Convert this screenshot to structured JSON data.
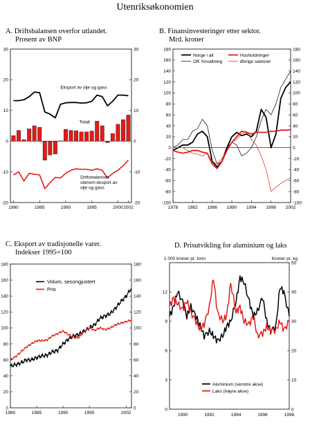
{
  "page_title": "Utenriksøkonomien",
  "chart_data": [
    {
      "id": "A",
      "type": "bar",
      "title_lines": [
        "A.  Driftsbalansen overfor utlandet.",
        "Prosent av BNP"
      ],
      "ylim": [
        -20,
        30
      ],
      "yticks": [
        -20,
        -10,
        0,
        10,
        20,
        30
      ],
      "xlim": [
        1979.4,
        2002.6
      ],
      "xticks": [
        1980,
        1985,
        1990,
        1995,
        2000,
        2002
      ],
      "bars": {
        "name": "Totalt",
        "x": [
          1980,
          1981,
          1982,
          1983,
          1984,
          1985,
          1986,
          1987,
          1988,
          1989,
          1990,
          1991,
          1992,
          1993,
          1994,
          1995,
          1996,
          1997,
          1998,
          1999,
          2000,
          2001,
          2002
        ],
        "values": [
          1.8,
          3.5,
          0.5,
          4.0,
          5.0,
          4.5,
          -6.2,
          -4.5,
          -4.2,
          0.1,
          3.8,
          3.5,
          3.4,
          3.0,
          3.0,
          3.3,
          6.5,
          5.0,
          -0.5,
          2.5,
          5.5,
          7.0,
          8.5
        ]
      },
      "lines": [
        {
          "name": "Eksport av olje og gass",
          "x": [
            1980,
            1981,
            1982,
            1983,
            1984,
            1985,
            1986,
            1987,
            1988,
            1989,
            1990,
            1991,
            1992,
            1993,
            1994,
            1995,
            1996,
            1997,
            1998,
            1999,
            2000,
            2001,
            2002
          ],
          "values": [
            13.2,
            13.2,
            13.5,
            14.5,
            16.0,
            15.8,
            9.5,
            8.8,
            7.6,
            12.0,
            12.5,
            12.6,
            12.6,
            12.4,
            12.5,
            13.0,
            15.0,
            14.5,
            11.5,
            13.0,
            15.0,
            15.0,
            14.8
          ]
        },
        {
          "name": "Driftsbalansen utenom eksport av olje og gass",
          "x": [
            1980,
            1981,
            1982,
            1983,
            1984,
            1985,
            1986,
            1987,
            1988,
            1989,
            1990,
            1991,
            1992,
            1993,
            1994,
            1995,
            1996,
            1997,
            1998,
            1999,
            2000,
            2001,
            2002
          ],
          "values": [
            -11.0,
            -10.0,
            -13.0,
            -10.5,
            -10.8,
            -11.0,
            -15.5,
            -13.5,
            -11.8,
            -12.0,
            -10.5,
            -9.5,
            -9.0,
            -9.2,
            -9.2,
            -9.5,
            -9.0,
            -9.5,
            -12.0,
            -10.5,
            -9.5,
            -8.0,
            -6.2
          ]
        }
      ],
      "annotations": [
        "Eksport av olje og gass",
        "Totalt",
        "Driftsbalansen",
        "utenom eksport av",
        "olje og gass"
      ]
    },
    {
      "id": "B",
      "type": "line",
      "title_lines": [
        "B.  Finansinvesteringer etter sektor.",
        "Mrd. kroner"
      ],
      "ylim": [
        -100,
        180
      ],
      "yticks": [
        -100,
        -80,
        -60,
        -40,
        -20,
        0,
        20,
        40,
        60,
        80,
        100,
        120,
        140,
        160,
        180
      ],
      "xlim": [
        1978,
        2002
      ],
      "xticks": [
        1978,
        1982,
        1986,
        1990,
        1994,
        1998,
        2002
      ],
      "legend": [
        "Norge i alt",
        "Off. forvaltning",
        "Husholdninger",
        "Øvrige sektorer"
      ],
      "series": [
        {
          "name": "Norge i alt",
          "x": [
            1978,
            1979,
            1980,
            1981,
            1982,
            1983,
            1984,
            1985,
            1986,
            1987,
            1988,
            1989,
            1990,
            1991,
            1992,
            1993,
            1994,
            1995,
            1996,
            1997,
            1998,
            1999,
            2000,
            2001,
            2002
          ],
          "values": [
            -5,
            0,
            5,
            5,
            10,
            25,
            30,
            20,
            -25,
            -35,
            -25,
            0,
            20,
            28,
            22,
            25,
            20,
            30,
            70,
            55,
            0,
            25,
            90,
            110,
            120
          ]
        },
        {
          "name": "Off. forvaltning",
          "x": [
            1978,
            1979,
            1980,
            1981,
            1982,
            1983,
            1984,
            1985,
            1986,
            1987,
            1988,
            1989,
            1990,
            1991,
            1992,
            1993,
            1994,
            1995,
            1996,
            1997,
            1998,
            1999,
            2000,
            2001,
            2002
          ],
          "values": [
            0,
            5,
            15,
            15,
            30,
            35,
            52,
            40,
            -5,
            -30,
            -25,
            0,
            10,
            5,
            -15,
            -10,
            0,
            20,
            50,
            70,
            60,
            80,
            110,
            125,
            140
          ]
        },
        {
          "name": "Husholdninger",
          "x": [
            1978,
            1979,
            1980,
            1981,
            1982,
            1983,
            1984,
            1985,
            1986,
            1987,
            1988,
            1989,
            1990,
            1991,
            1992,
            1993,
            1994,
            1995,
            1996,
            1997,
            1998,
            1999,
            2000,
            2001,
            2002
          ],
          "values": [
            -5,
            -8,
            -10,
            -8,
            -5,
            -5,
            -8,
            -10,
            -30,
            -38,
            -25,
            -5,
            10,
            20,
            30,
            28,
            25,
            28,
            28,
            28,
            30,
            30,
            32,
            32,
            33
          ]
        },
        {
          "name": "Øvrige sektorer",
          "x": [
            1978,
            1979,
            1980,
            1981,
            1982,
            1983,
            1984,
            1985,
            1986,
            1987,
            1988,
            1989,
            1990,
            1991,
            1992,
            1993,
            1994,
            1995,
            1996,
            1997,
            1998,
            1999,
            2000,
            2001,
            2002
          ],
          "values": [
            0,
            0,
            0,
            -5,
            -10,
            -12,
            -15,
            -10,
            -25,
            -30,
            -20,
            -5,
            10,
            15,
            25,
            30,
            15,
            5,
            -15,
            -40,
            -80,
            -72,
            -65,
            -60,
            -55
          ]
        }
      ]
    },
    {
      "id": "C",
      "type": "line",
      "title_lines": [
        "C.  Eksport av tradisjonelle varer.",
        "Indekser  1995=100"
      ],
      "ylim": [
        0,
        180
      ],
      "yticks": [
        0,
        20,
        40,
        60,
        80,
        100,
        120,
        140,
        160,
        180
      ],
      "xlim": [
        1980,
        2003
      ],
      "xticks": [
        1980,
        1985,
        1990,
        1995,
        2002
      ],
      "legend": [
        "Volum, sesongjustert",
        "Pris"
      ],
      "series": [
        {
          "name": "Volum, sesongjustert",
          "x": [
            1980,
            1981,
            1982,
            1983,
            1984,
            1985,
            1986,
            1987,
            1988,
            1989,
            1990,
            1991,
            1992,
            1993,
            1994,
            1995,
            1996,
            1997,
            1998,
            1999,
            2000,
            2001,
            2002,
            2003
          ],
          "values": [
            52,
            54,
            56,
            60,
            60,
            63,
            65,
            66,
            70,
            72,
            80,
            86,
            90,
            92,
            96,
            100,
            104,
            112,
            115,
            118,
            125,
            133,
            140,
            150
          ]
        },
        {
          "name": "Pris",
          "x": [
            1980,
            1981,
            1982,
            1983,
            1984,
            1985,
            1986,
            1987,
            1988,
            1989,
            1990,
            1991,
            1992,
            1993,
            1994,
            1995,
            1996,
            1997,
            1998,
            1999,
            2000,
            2001,
            2002,
            2003
          ],
          "values": [
            60,
            64,
            70,
            76,
            80,
            84,
            84,
            85,
            90,
            93,
            96,
            92,
            88,
            88,
            95,
            100,
            97,
            100,
            98,
            100,
            104,
            106,
            108,
            110
          ]
        }
      ]
    },
    {
      "id": "D",
      "type": "line",
      "title_lines": [
        "D.  Prisutvikling for aluminium og laks"
      ],
      "left_axis_label": "1 000 kroner pr. tonn",
      "right_axis_label": "Kroner pr. kg",
      "ylim_left": [
        0,
        15
      ],
      "yticks_left": [
        0,
        3,
        6,
        9,
        12
      ],
      "ylim_right": [
        0,
        50
      ],
      "yticks_right": [
        0,
        10,
        20,
        30,
        40,
        50
      ],
      "xlim": [
        1989,
        1998
      ],
      "xticks": [
        1990,
        1992,
        1994,
        1996,
        1998
      ],
      "legend": [
        "Aluminium (venstre akse)",
        "Laks (høyre akse)"
      ],
      "series": [
        {
          "name": "Aluminium (venstre akse)",
          "axis": "left",
          "x": [
            1989,
            1989.3,
            1989.6,
            1990,
            1990.3,
            1990.6,
            1991,
            1991.3,
            1991.6,
            1992,
            1992.3,
            1992.6,
            1993,
            1993.3,
            1993.6,
            1994,
            1994.3,
            1994.6,
            1995,
            1995.3,
            1995.6,
            1996,
            1996.3,
            1996.6,
            1997,
            1997.3,
            1997.6,
            1998
          ],
          "values": [
            9.5,
            10.5,
            12.0,
            11.0,
            9.5,
            10.5,
            9.5,
            8.5,
            7.5,
            8.0,
            7.5,
            7.0,
            7.5,
            8.5,
            9.0,
            11.0,
            13.5,
            13.0,
            11.0,
            9.5,
            10.0,
            11.5,
            9.0,
            8.0,
            8.5,
            12.5,
            12.0,
            9.5
          ]
        },
        {
          "name": "Laks (høyre akse)",
          "axis": "right",
          "x": [
            1989,
            1989.3,
            1989.6,
            1990,
            1990.3,
            1990.6,
            1991,
            1991.3,
            1991.6,
            1992,
            1992.3,
            1992.6,
            1993,
            1993.3,
            1993.6,
            1994,
            1994.3,
            1994.6,
            1995,
            1995.3,
            1995.6,
            1996,
            1996.3,
            1996.6,
            1997,
            1997.3,
            1997.6,
            1998
          ],
          "values": [
            35,
            38,
            36,
            34,
            37,
            33,
            30,
            27,
            29,
            35,
            45,
            33,
            30,
            32,
            43,
            33,
            35,
            30,
            29,
            32,
            25,
            26,
            28,
            27,
            27,
            30,
            27,
            30
          ]
        }
      ]
    }
  ]
}
